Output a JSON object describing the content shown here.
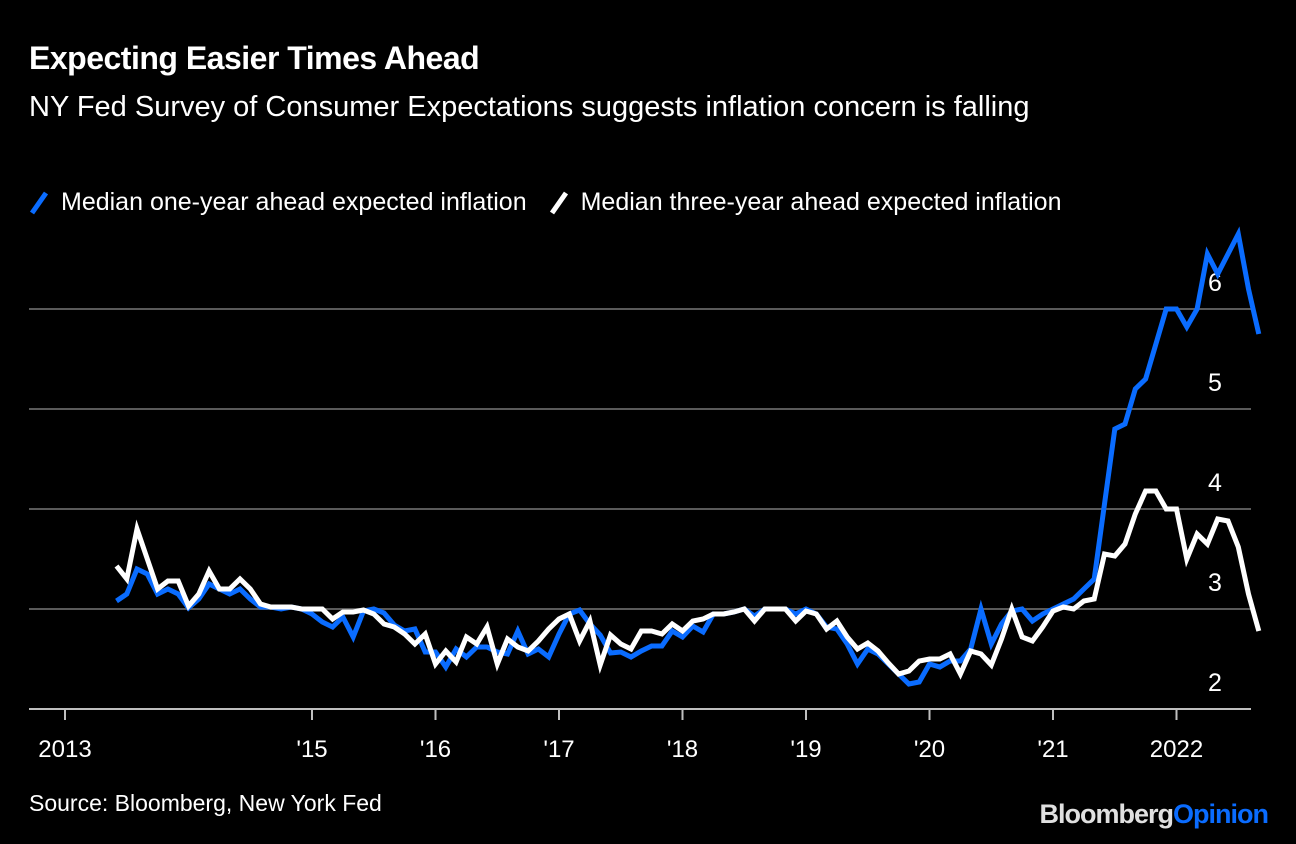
{
  "header": {
    "title": "Expecting Easier Times Ahead",
    "subtitle": "NY Fed Survey of Consumer Expectations suggests inflation concern is falling"
  },
  "legend": [
    {
      "label": "Median one-year ahead expected inflation",
      "color": "#0a6cff"
    },
    {
      "label": "Median three-year ahead expected inflation",
      "color": "#ffffff"
    }
  ],
  "footer": {
    "source": "Source: Bloomberg, New York Fed",
    "brand_part1": "Bloomberg",
    "brand_part2": "Opinion"
  },
  "chart_data": {
    "type": "line",
    "title": "Expecting Easier Times Ahead",
    "xlabel": "",
    "ylabel": "",
    "x_start": "2013-06",
    "x_frequency": "monthly",
    "x_ticks": [
      {
        "label": "2013",
        "year": 2013
      },
      {
        "label": "'15",
        "year": 2015
      },
      {
        "label": "'16",
        "year": 2016
      },
      {
        "label": "'17",
        "year": 2017
      },
      {
        "label": "'18",
        "year": 2018
      },
      {
        "label": "'19",
        "year": 2019
      },
      {
        "label": "'20",
        "year": 2020
      },
      {
        "label": "'21",
        "year": 2021
      },
      {
        "label": "2022",
        "year": 2022
      }
    ],
    "y_ticks": [
      2,
      3,
      4,
      5,
      6
    ],
    "ylim": [
      2,
      6.8
    ],
    "y_axis_position": "right",
    "grid": true,
    "legend_position": "top-left",
    "series": [
      {
        "name": "Median one-year ahead expected inflation",
        "color": "#0a6cff",
        "values": [
          3.08,
          3.15,
          3.4,
          3.35,
          3.15,
          3.2,
          3.15,
          3.01,
          3.1,
          3.25,
          3.2,
          3.15,
          3.2,
          3.1,
          3.02,
          3.02,
          3.0,
          3.02,
          3.0,
          2.95,
          2.87,
          2.82,
          2.92,
          2.72,
          2.98,
          3.0,
          2.96,
          2.84,
          2.78,
          2.8,
          2.57,
          2.57,
          2.42,
          2.6,
          2.52,
          2.62,
          2.62,
          2.57,
          2.55,
          2.78,
          2.55,
          2.6,
          2.52,
          2.75,
          2.95,
          2.99,
          2.85,
          2.74,
          2.56,
          2.57,
          2.52,
          2.58,
          2.63,
          2.63,
          2.78,
          2.72,
          2.83,
          2.77,
          2.95,
          2.95,
          2.97,
          3.0,
          2.93,
          3.0,
          3.0,
          3.0,
          2.95,
          3.0,
          2.95,
          2.82,
          2.8,
          2.65,
          2.45,
          2.6,
          2.55,
          2.45,
          2.35,
          2.25,
          2.27,
          2.45,
          2.42,
          2.48,
          2.48,
          2.6,
          3.0,
          2.65,
          2.85,
          2.98,
          3.0,
          2.88,
          2.95,
          3.0,
          3.05,
          3.1,
          3.2,
          3.3,
          4.05,
          4.8,
          4.85,
          5.2,
          5.3,
          5.65,
          6.0,
          6.0,
          5.82,
          6.0,
          6.55,
          6.35,
          6.55,
          6.75,
          6.2,
          5.75
        ]
      },
      {
        "name": "Median three-year ahead expected inflation",
        "color": "#ffffff",
        "values": [
          3.43,
          3.3,
          3.8,
          3.5,
          3.2,
          3.28,
          3.28,
          3.03,
          3.15,
          3.38,
          3.2,
          3.2,
          3.3,
          3.2,
          3.05,
          3.02,
          3.02,
          3.02,
          3.0,
          3.0,
          3.0,
          2.9,
          2.97,
          2.97,
          2.99,
          2.95,
          2.85,
          2.82,
          2.75,
          2.65,
          2.75,
          2.45,
          2.58,
          2.47,
          2.72,
          2.65,
          2.82,
          2.45,
          2.7,
          2.62,
          2.58,
          2.68,
          2.8,
          2.9,
          2.95,
          2.68,
          2.88,
          2.44,
          2.74,
          2.65,
          2.6,
          2.78,
          2.78,
          2.75,
          2.85,
          2.78,
          2.88,
          2.9,
          2.95,
          2.95,
          2.97,
          3.0,
          2.88,
          3.0,
          3.0,
          3.0,
          2.88,
          2.98,
          2.95,
          2.8,
          2.88,
          2.72,
          2.6,
          2.66,
          2.58,
          2.46,
          2.35,
          2.38,
          2.48,
          2.5,
          2.5,
          2.55,
          2.35,
          2.58,
          2.55,
          2.44,
          2.7,
          3.0,
          2.72,
          2.68,
          2.82,
          2.98,
          3.02,
          3.0,
          3.08,
          3.1,
          3.55,
          3.53,
          3.65,
          3.95,
          4.18,
          4.18,
          4.0,
          4.0,
          3.5,
          3.75,
          3.65,
          3.9,
          3.88,
          3.62,
          3.15,
          2.78
        ]
      }
    ]
  }
}
